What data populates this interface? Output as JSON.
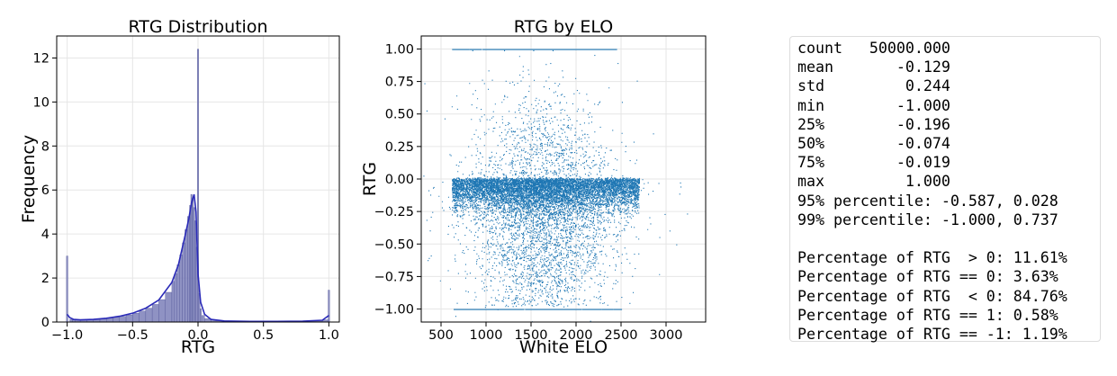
{
  "chart_data": [
    {
      "type": "bar",
      "title": "RTG Distribution",
      "xlabel": "RTG",
      "ylabel": "Frequency",
      "xlim": [
        -1.08,
        1.08
      ],
      "ylim": [
        0,
        13.0
      ],
      "x_ticks": [
        -1.0,
        -0.5,
        0.0,
        0.5,
        1.0
      ],
      "x_tick_labels": [
        "−1.0",
        "−0.5",
        "0.0",
        "0.5",
        "1.0"
      ],
      "y_ticks": [
        0,
        2,
        4,
        6,
        8,
        10,
        12
      ],
      "y_tick_labels": [
        "0",
        "2",
        "4",
        "6",
        "8",
        "10",
        "12"
      ],
      "grid": true,
      "bar_color": "#7b7fb8",
      "kde_color": "#2b2bb8",
      "bins": {
        "x": [
          -1.0,
          -0.98,
          -0.96,
          -0.94,
          -0.9,
          -0.85,
          -0.8,
          -0.75,
          -0.7,
          -0.65,
          -0.6,
          -0.55,
          -0.5,
          -0.45,
          -0.4,
          -0.35,
          -0.3,
          -0.25,
          -0.2,
          -0.18,
          -0.16,
          -0.14,
          -0.12,
          -0.1,
          -0.08,
          -0.06,
          -0.05,
          -0.04,
          -0.03,
          -0.02,
          -0.01,
          0.0,
          0.01,
          0.02,
          0.03,
          0.05,
          0.1,
          0.2,
          0.4,
          0.6,
          0.8,
          0.95,
          1.0
        ],
        "values": [
          3.0,
          0.12,
          0.1,
          0.09,
          0.09,
          0.1,
          0.12,
          0.14,
          0.17,
          0.21,
          0.26,
          0.32,
          0.4,
          0.5,
          0.63,
          0.8,
          1.02,
          1.35,
          1.85,
          2.2,
          2.6,
          3.05,
          3.6,
          4.2,
          4.8,
          5.3,
          5.8,
          5.6,
          5.2,
          4.6,
          3.4,
          12.4,
          1.3,
          0.6,
          0.3,
          0.15,
          0.06,
          0.04,
          0.03,
          0.03,
          0.04,
          0.1,
          1.45
        ]
      },
      "kde": {
        "x": [
          -1.0,
          -0.98,
          -0.95,
          -0.9,
          -0.8,
          -0.7,
          -0.6,
          -0.5,
          -0.4,
          -0.3,
          -0.2,
          -0.15,
          -0.1,
          -0.07,
          -0.05,
          -0.03,
          -0.015,
          0.0,
          0.02,
          0.05,
          0.1,
          0.2,
          0.4,
          0.6,
          0.8,
          0.95,
          1.0
        ],
        "values": [
          0.35,
          0.2,
          0.12,
          0.1,
          0.12,
          0.17,
          0.26,
          0.4,
          0.63,
          1.0,
          1.8,
          2.6,
          3.9,
          4.7,
          5.4,
          5.8,
          5.0,
          2.2,
          0.9,
          0.35,
          0.12,
          0.05,
          0.03,
          0.03,
          0.04,
          0.08,
          0.3
        ]
      }
    },
    {
      "type": "scatter",
      "title": "RTG by ELO",
      "xlabel": "White ELO",
      "ylabel": "RTG",
      "xlim": [
        280,
        3440
      ],
      "ylim": [
        -1.1,
        1.1
      ],
      "x_ticks": [
        500,
        1000,
        1500,
        2000,
        2500,
        3000
      ],
      "x_tick_labels": [
        "500",
        "1000",
        "1500",
        "2000",
        "2500",
        "3000"
      ],
      "y_ticks": [
        -1.0,
        -0.75,
        -0.5,
        -0.25,
        0.0,
        0.25,
        0.5,
        0.75,
        1.0
      ],
      "y_tick_labels": [
        "−1.00",
        "−0.75",
        "−0.50",
        "−0.25",
        "0.00",
        "0.25",
        "0.50",
        "0.75",
        "1.00"
      ],
      "grid": true,
      "point_color": "#1f77b4",
      "n_points": 50000,
      "dense_band": {
        "y": [
          -0.3,
          0.02
        ],
        "x": [
          620,
          2700
        ]
      },
      "rtg_plus_one_x_range": [
        620,
        2450
      ],
      "rtg_minus_one_x_range": [
        640,
        2500
      ]
    }
  ],
  "stats_lines": [
    "count   50000.000",
    "mean       -0.129",
    "std         0.244",
    "min        -1.000",
    "25%        -0.196",
    "50%        -0.074",
    "75%        -0.019",
    "max         1.000",
    "95% percentile: -0.587, 0.028",
    "99% percentile: -1.000, 0.737",
    "",
    "Percentage of RTG  > 0: 11.61%",
    "Percentage of RTG == 0: 3.63%",
    "Percentage of RTG  < 0: 84.76%",
    "Percentage of RTG == 1: 0.58%",
    "Percentage of RTG == -1: 1.19%"
  ]
}
